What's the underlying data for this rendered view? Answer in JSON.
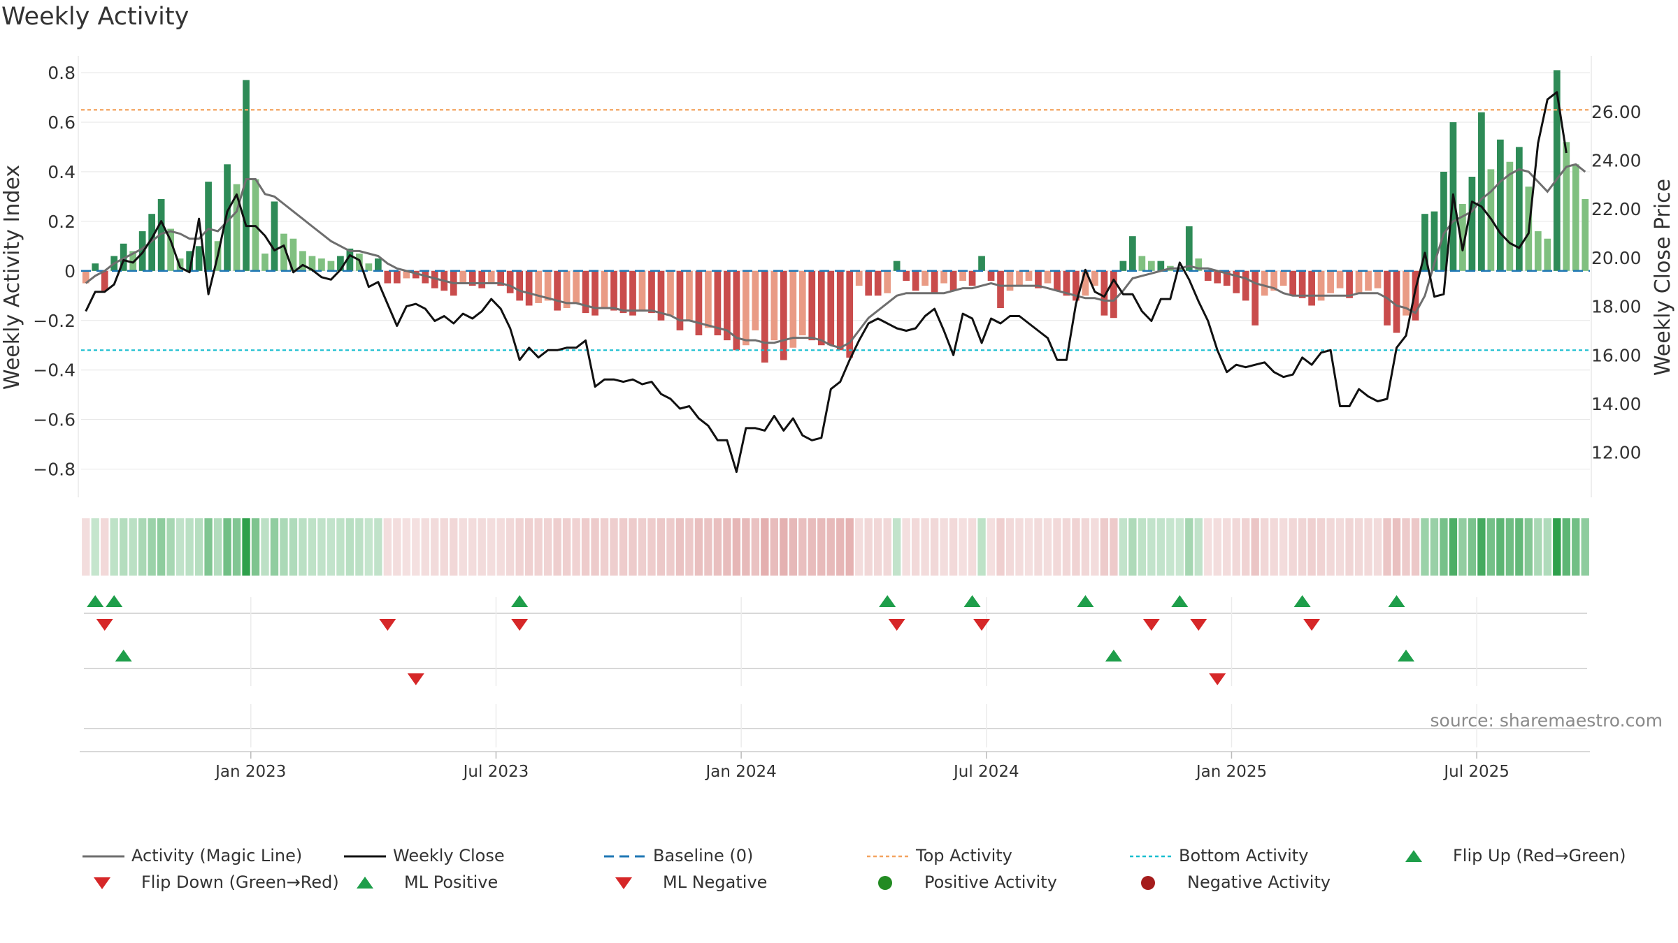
{
  "chart_title": "Weekly Activity",
  "source": "source: sharemaestro.com",
  "colors": {
    "pos_strong": "#2e8b57",
    "pos_weak": "#80c080",
    "neg_strong": "#c94c4c",
    "neg_weak": "#e99b85",
    "magic": "#6e6e6e",
    "close": "#111111",
    "baseline": "#1f77b4",
    "top": "#f4a460",
    "bottom": "#17becf",
    "flip_up": "#1e9e4a",
    "flip_down": "#d62728"
  },
  "chart_data": {
    "type": "bar",
    "title": "Weekly Activity",
    "ylabel_left": "Weekly Activity Index",
    "ylabel_right": "Weekly Close Price",
    "ylim_left": [
      -0.88,
      0.8
    ],
    "ylim_right": [
      10.5,
      27.6
    ],
    "left_ticks": [
      "0.8",
      "0.6",
      "0.4",
      "0.2",
      "0",
      "−0.2",
      "−0.4",
      "−0.6",
      "−0.8"
    ],
    "right_ticks": [
      "26.00",
      "24.00",
      "22.00",
      "20.00",
      "18.00",
      "16.00",
      "14.00",
      "12.00"
    ],
    "x_tick_labels": [
      "Jan 2023",
      "Jul 2023",
      "Jan 2024",
      "Jul 2024",
      "Jan 2025",
      "Jul 2025"
    ],
    "x_tick_weeks": [
      17.5,
      43.5,
      69.5,
      95.5,
      121.5,
      147.5
    ],
    "top_activity": 0.65,
    "bottom_activity": -0.32,
    "baseline": 0,
    "activity": [
      -0.05,
      0.03,
      -0.08,
      0.06,
      0.11,
      0.08,
      0.16,
      0.23,
      0.29,
      0.17,
      0.05,
      0.08,
      0.1,
      0.36,
      0.12,
      0.43,
      0.35,
      0.77,
      0.37,
      0.07,
      0.28,
      0.15,
      0.13,
      0.08,
      0.06,
      0.05,
      0.04,
      0.06,
      0.09,
      0.07,
      0.03,
      0.05,
      -0.05,
      -0.05,
      -0.03,
      -0.03,
      -0.05,
      -0.07,
      -0.08,
      -0.1,
      -0.05,
      -0.06,
      -0.07,
      -0.05,
      -0.06,
      -0.09,
      -0.12,
      -0.14,
      -0.13,
      -0.12,
      -0.16,
      -0.15,
      -0.13,
      -0.17,
      -0.18,
      -0.15,
      -0.16,
      -0.17,
      -0.18,
      -0.16,
      -0.17,
      -0.2,
      -0.18,
      -0.24,
      -0.2,
      -0.26,
      -0.23,
      -0.26,
      -0.28,
      -0.32,
      -0.3,
      -0.24,
      -0.37,
      -0.28,
      -0.36,
      -0.31,
      -0.26,
      -0.28,
      -0.3,
      -0.3,
      -0.32,
      -0.35,
      -0.06,
      -0.1,
      -0.1,
      -0.09,
      0.04,
      -0.04,
      -0.08,
      -0.06,
      -0.09,
      -0.05,
      -0.08,
      -0.04,
      -0.06,
      0.06,
      -0.04,
      -0.15,
      -0.08,
      -0.06,
      -0.04,
      -0.07,
      -0.05,
      -0.08,
      -0.1,
      -0.12,
      -0.1,
      -0.06,
      -0.18,
      -0.19,
      0.04,
      0.14,
      0.06,
      0.04,
      0.04,
      0.02,
      0.01,
      0.18,
      0.05,
      -0.04,
      -0.05,
      -0.06,
      -0.09,
      -0.12,
      -0.22,
      -0.1,
      -0.08,
      -0.06,
      -0.1,
      -0.11,
      -0.14,
      -0.12,
      -0.09,
      -0.07,
      -0.11,
      -0.09,
      -0.08,
      -0.07,
      -0.22,
      -0.25,
      -0.18,
      -0.2,
      0.23,
      0.24,
      0.4,
      0.6,
      0.27,
      0.38,
      0.64,
      0.41,
      0.53,
      0.44,
      0.5,
      0.34,
      0.16,
      0.13,
      0.81,
      0.52,
      0.43,
      0.29
    ],
    "magic_line": [
      -0.05,
      -0.02,
      0.0,
      0.03,
      0.05,
      0.07,
      0.09,
      0.12,
      0.15,
      0.16,
      0.15,
      0.13,
      0.13,
      0.17,
      0.16,
      0.2,
      0.24,
      0.37,
      0.37,
      0.31,
      0.3,
      0.27,
      0.24,
      0.21,
      0.18,
      0.15,
      0.12,
      0.1,
      0.08,
      0.08,
      0.07,
      0.06,
      0.03,
      0.01,
      0.0,
      -0.01,
      -0.02,
      -0.03,
      -0.04,
      -0.05,
      -0.05,
      -0.05,
      -0.05,
      -0.05,
      -0.05,
      -0.06,
      -0.08,
      -0.09,
      -0.1,
      -0.11,
      -0.12,
      -0.13,
      -0.13,
      -0.14,
      -0.15,
      -0.15,
      -0.15,
      -0.16,
      -0.16,
      -0.16,
      -0.16,
      -0.17,
      -0.18,
      -0.2,
      -0.2,
      -0.21,
      -0.22,
      -0.23,
      -0.24,
      -0.27,
      -0.28,
      -0.28,
      -0.29,
      -0.29,
      -0.28,
      -0.27,
      -0.27,
      -0.27,
      -0.28,
      -0.3,
      -0.31,
      -0.29,
      -0.24,
      -0.19,
      -0.16,
      -0.13,
      -0.1,
      -0.09,
      -0.09,
      -0.09,
      -0.09,
      -0.09,
      -0.08,
      -0.07,
      -0.07,
      -0.06,
      -0.05,
      -0.06,
      -0.06,
      -0.06,
      -0.06,
      -0.06,
      -0.07,
      -0.08,
      -0.09,
      -0.1,
      -0.11,
      -0.11,
      -0.12,
      -0.12,
      -0.08,
      -0.03,
      -0.02,
      -0.01,
      0.0,
      0.01,
      0.01,
      0.02,
      0.01,
      0.01,
      0.0,
      -0.01,
      -0.02,
      -0.03,
      -0.05,
      -0.06,
      -0.07,
      -0.09,
      -0.1,
      -0.1,
      -0.1,
      -0.1,
      -0.1,
      -0.1,
      -0.1,
      -0.09,
      -0.09,
      -0.09,
      -0.11,
      -0.14,
      -0.15,
      -0.17,
      -0.1,
      0.03,
      0.15,
      0.2,
      0.22,
      0.24,
      0.29,
      0.32,
      0.36,
      0.39,
      0.41,
      0.4,
      0.36,
      0.32,
      0.37,
      0.42,
      0.43,
      0.4
    ],
    "weekly_close": [
      17.8,
      18.6,
      18.6,
      18.9,
      19.9,
      19.8,
      20.2,
      20.8,
      21.5,
      20.7,
      19.6,
      19.4,
      21.6,
      18.5,
      20.1,
      21.9,
      22.6,
      21.3,
      21.3,
      20.9,
      20.3,
      20.5,
      19.4,
      19.7,
      19.5,
      19.2,
      19.1,
      19.5,
      20.1,
      19.9,
      18.8,
      19.0,
      18.1,
      17.2,
      18.0,
      18.1,
      17.9,
      17.4,
      17.6,
      17.3,
      17.7,
      17.5,
      17.8,
      18.3,
      17.9,
      17.1,
      15.8,
      16.3,
      15.9,
      16.2,
      16.2,
      16.3,
      16.3,
      16.6,
      14.7,
      15.0,
      15.0,
      14.9,
      15.0,
      14.8,
      14.9,
      14.4,
      14.2,
      13.8,
      13.9,
      13.4,
      13.1,
      12.5,
      12.5,
      11.2,
      13.0,
      13.0,
      12.9,
      13.5,
      12.9,
      13.4,
      12.7,
      12.5,
      12.6,
      14.6,
      14.9,
      15.8,
      16.6,
      17.3,
      17.5,
      17.3,
      17.1,
      17.0,
      17.1,
      17.6,
      17.9,
      17.0,
      16.0,
      17.7,
      17.5,
      16.5,
      17.5,
      17.3,
      17.6,
      17.6,
      17.3,
      17.0,
      16.7,
      15.8,
      15.8,
      18.1,
      19.5,
      18.6,
      18.4,
      19.1,
      18.5,
      18.5,
      17.8,
      17.4,
      18.3,
      18.3,
      19.8,
      19.1,
      18.2,
      17.4,
      16.2,
      15.3,
      15.6,
      15.5,
      15.6,
      15.7,
      15.3,
      15.1,
      15.2,
      15.9,
      15.6,
      16.1,
      16.2,
      13.9,
      13.9,
      14.6,
      14.3,
      14.1,
      14.2,
      16.3,
      16.8,
      18.7,
      20.2,
      18.4,
      18.5,
      22.6,
      20.3,
      22.3,
      22.1,
      21.6,
      21.0,
      20.6,
      20.4,
      21.0,
      24.7,
      26.5,
      26.8,
      24.3
    ],
    "flip_up_weeks": [
      1,
      3,
      46,
      85,
      94,
      106,
      116,
      129,
      139
    ],
    "flip_down_weeks": [
      2,
      32,
      46,
      86,
      95,
      113,
      118,
      130
    ],
    "ml_positive_weeks": [
      4,
      109,
      140
    ],
    "ml_negative_weeks": [
      35,
      120
    ]
  },
  "legend": [
    {
      "label": "Activity (Magic Line)",
      "kind": "line"
    },
    {
      "label": "Weekly Close",
      "kind": "line"
    },
    {
      "label": "Baseline (0)",
      "kind": "dash"
    },
    {
      "label": "Top Activity",
      "kind": "dot"
    },
    {
      "label": "Bottom Activity",
      "kind": "dot"
    },
    {
      "label": "Flip Up (Red→Green)",
      "kind": "tri-up"
    },
    {
      "label": "Flip Down (Green→Red)",
      "kind": "tri-down"
    },
    {
      "label": "ML Positive",
      "kind": "tri-up"
    },
    {
      "label": "ML Negative",
      "kind": "tri-down"
    },
    {
      "label": "Positive Activity",
      "kind": "circle"
    },
    {
      "label": "Negative Activity",
      "kind": "circle"
    }
  ]
}
